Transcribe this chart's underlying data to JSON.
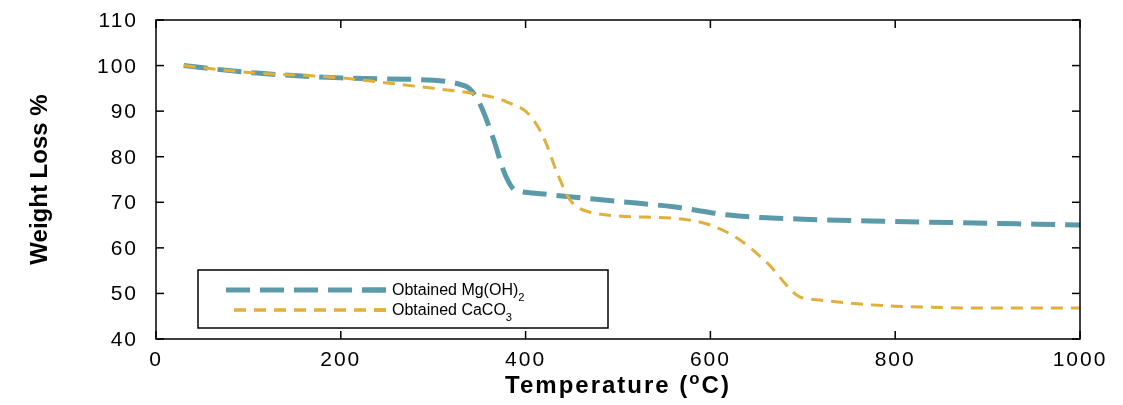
{
  "chart_data": {
    "type": "line",
    "xlabel": "Temperature ($^{o}$C)",
    "ylabel": "Weight Loss %",
    "xlim": [
      0,
      1000
    ],
    "xticks": [
      0,
      200,
      400,
      600,
      800,
      1000
    ],
    "ylim": [
      40,
      110
    ],
    "yticks": [
      40,
      50,
      60,
      70,
      80,
      90,
      100,
      110
    ],
    "legend": "bottom left",
    "grid": false,
    "series": [
      {
        "name": "Obtained Mg(OH)$_{2}$",
        "color": "#5b9aa8",
        "line_style": "dashed",
        "x": [
          30,
          100,
          200,
          300,
          335,
          350,
          365,
          378,
          390,
          420,
          500,
          560,
          620,
          700,
          800,
          900,
          1000
        ],
        "values": [
          100,
          98.5,
          97.3,
          96.8,
          95.5,
          91.8,
          84,
          76,
          72.5,
          71.8,
          70.2,
          69,
          67.2,
          66.3,
          65.8,
          65.4,
          65
        ]
      },
      {
        "name": "Obtained CaCO$_{3}$",
        "color": "#e0b03a",
        "line_style": "dashed",
        "x": [
          30,
          100,
          200,
          250,
          300,
          340,
          380,
          405,
          420,
          435,
          450,
          470,
          500,
          560,
          600,
          630,
          660,
          700,
          720,
          800,
          900,
          1000
        ],
        "values": [
          100,
          98.5,
          97.3,
          96.2,
          95,
          94,
          92,
          89,
          84,
          76,
          70,
          67.8,
          67,
          66.5,
          65,
          62,
          57,
          49,
          48.5,
          47.2,
          46.8,
          46.8
        ]
      }
    ]
  }
}
